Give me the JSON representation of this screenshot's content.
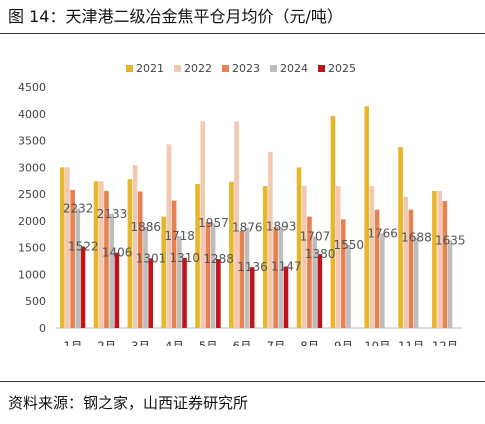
{
  "title": "图 14：天津港二级冶金焦平仓月均价（元/吨）",
  "source": "资料来源：钢之家，山西证券研究所",
  "chart_data": {
    "type": "bar",
    "categories": [
      "1月",
      "2月",
      "3月",
      "4月",
      "5月",
      "6月",
      "7月",
      "8月",
      "9月",
      "10月",
      "11月",
      "12月"
    ],
    "series": [
      {
        "name": "2021",
        "color": "#E9B52B",
        "values": [
          3000,
          2740,
          2780,
          2080,
          2690,
          2730,
          2650,
          3000,
          3960,
          4140,
          3380,
          2560
        ]
      },
      {
        "name": "2022",
        "color": "#F4C7B0",
        "values": [
          3000,
          2740,
          3040,
          3430,
          3860,
          3860,
          3290,
          2650,
          2650,
          2650,
          2450,
          2560
        ]
      },
      {
        "name": "2023",
        "color": "#E8814F",
        "values": [
          2580,
          2560,
          2550,
          2380,
          1980,
          1810,
          1880,
          2080,
          2030,
          2210,
          2210,
          2370
        ]
      },
      {
        "name": "2024",
        "color": "#BDBDBD",
        "values": [
          2232,
          2133,
          1886,
          1718,
          1957,
          1876,
          1893,
          1707,
          1550,
          1766,
          1688,
          1635
        ]
      },
      {
        "name": "2025",
        "color": "#C0141B",
        "values": [
          1522,
          1406,
          1301,
          1310,
          1288,
          1136,
          1147,
          1380,
          null,
          null,
          null,
          null
        ]
      }
    ],
    "data_labels": {
      "2024": [
        "2232",
        "2133",
        "1886",
        "1718",
        "1957",
        "1876",
        "1893",
        "1707",
        "1550",
        "1766",
        "1688",
        "1635"
      ],
      "2025": [
        "1522",
        "1406",
        "1301",
        "1310",
        "1288",
        "1136",
        "1147",
        "1380"
      ]
    },
    "y_ticks": [
      "0",
      "500",
      "1000",
      "1500",
      "2000",
      "2500",
      "3000",
      "3500",
      "4000",
      "4500"
    ],
    "ylim": [
      0,
      4500
    ],
    "grid": false,
    "legend_position": "top-center"
  }
}
